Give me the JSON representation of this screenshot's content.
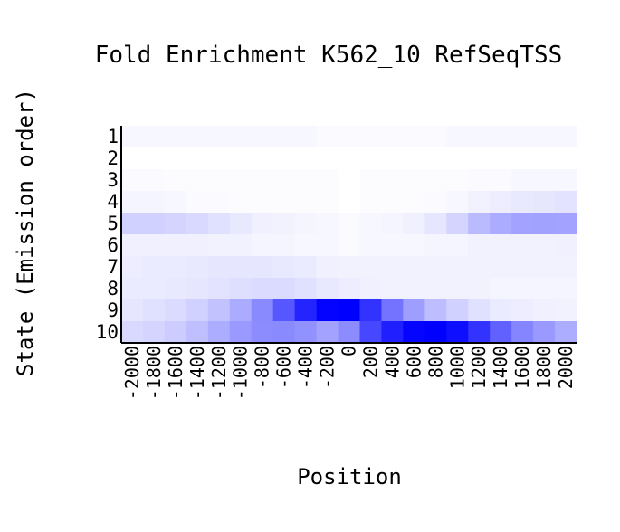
{
  "chart_data": {
    "type": "heatmap",
    "title": "Fold Enrichment K562_10 RefSeqTSS",
    "xlabel": "Position",
    "ylabel": "State (Emission order)",
    "x": [
      -2000,
      -1800,
      -1600,
      -1400,
      -1200,
      -1000,
      -800,
      -600,
      -400,
      -200,
      0,
      200,
      400,
      600,
      800,
      1000,
      1200,
      1400,
      1600,
      1800,
      2000
    ],
    "x_tick_labels": [
      "-2000",
      "-1800",
      "-1600",
      "-1400",
      "-1200",
      "-1000",
      "-800",
      "-600",
      "-400",
      "-200",
      "0",
      "200",
      "400",
      "600",
      "800",
      "1000",
      "1200",
      "1400",
      "1600",
      "1800",
      "2000"
    ],
    "y_tick_labels": [
      "1",
      "2",
      "3",
      "4",
      "5",
      "6",
      "7",
      "8",
      "9",
      "10"
    ],
    "value_range": [
      0,
      1
    ],
    "color_low": "#ffffff",
    "color_high": "#0000ff",
    "values": [
      [
        0.03,
        0.03,
        0.03,
        0.03,
        0.03,
        0.03,
        0.03,
        0.03,
        0.03,
        0.02,
        0.02,
        0.02,
        0.02,
        0.02,
        0.02,
        0.03,
        0.03,
        0.03,
        0.03,
        0.03,
        0.03
      ],
      [
        0.0,
        0.0,
        0.0,
        0.0,
        0.0,
        0.0,
        0.0,
        0.0,
        0.0,
        0.0,
        0.0,
        0.0,
        0.0,
        0.0,
        0.0,
        0.0,
        0.0,
        0.0,
        0.0,
        0.0,
        0.0
      ],
      [
        0.02,
        0.02,
        0.01,
        0.01,
        0.01,
        0.01,
        0.01,
        0.01,
        0.01,
        0.01,
        0.0,
        0.01,
        0.01,
        0.01,
        0.01,
        0.01,
        0.02,
        0.02,
        0.03,
        0.03,
        0.03
      ],
      [
        0.04,
        0.04,
        0.03,
        0.02,
        0.02,
        0.01,
        0.01,
        0.01,
        0.01,
        0.01,
        0.0,
        0.01,
        0.01,
        0.01,
        0.02,
        0.03,
        0.05,
        0.07,
        0.09,
        0.1,
        0.11
      ],
      [
        0.18,
        0.18,
        0.17,
        0.15,
        0.12,
        0.09,
        0.06,
        0.05,
        0.04,
        0.03,
        0.02,
        0.03,
        0.04,
        0.06,
        0.1,
        0.17,
        0.27,
        0.33,
        0.36,
        0.37,
        0.36
      ],
      [
        0.06,
        0.06,
        0.06,
        0.06,
        0.05,
        0.05,
        0.04,
        0.04,
        0.03,
        0.03,
        0.02,
        0.03,
        0.03,
        0.03,
        0.04,
        0.04,
        0.05,
        0.05,
        0.05,
        0.05,
        0.06
      ],
      [
        0.07,
        0.08,
        0.08,
        0.09,
        0.1,
        0.1,
        0.1,
        0.09,
        0.08,
        0.06,
        0.05,
        0.05,
        0.05,
        0.05,
        0.05,
        0.05,
        0.05,
        0.05,
        0.05,
        0.05,
        0.05
      ],
      [
        0.08,
        0.08,
        0.09,
        0.1,
        0.11,
        0.13,
        0.14,
        0.14,
        0.12,
        0.09,
        0.07,
        0.06,
        0.05,
        0.05,
        0.05,
        0.05,
        0.05,
        0.04,
        0.04,
        0.04,
        0.04
      ],
      [
        0.1,
        0.12,
        0.14,
        0.18,
        0.24,
        0.33,
        0.46,
        0.66,
        0.86,
        0.99,
        1.0,
        0.8,
        0.55,
        0.38,
        0.26,
        0.18,
        0.12,
        0.08,
        0.07,
        0.06,
        0.05
      ],
      [
        0.15,
        0.17,
        0.2,
        0.25,
        0.32,
        0.4,
        0.45,
        0.46,
        0.43,
        0.36,
        0.45,
        0.72,
        0.88,
        0.98,
        1.0,
        0.94,
        0.8,
        0.62,
        0.48,
        0.4,
        0.32
      ]
    ]
  }
}
